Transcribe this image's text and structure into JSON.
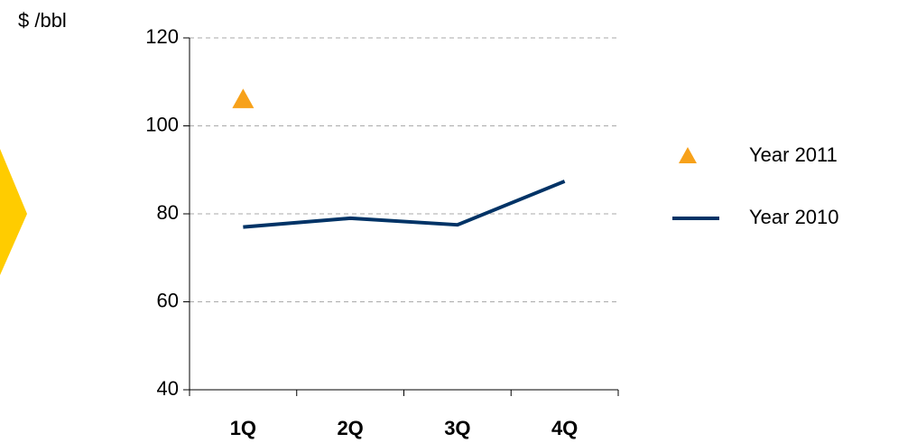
{
  "chart_data": {
    "type": "line",
    "y_axis_label": "$ /bbl",
    "categories": [
      "1Q",
      "2Q",
      "3Q",
      "4Q"
    ],
    "series": [
      {
        "name": "Year 2011",
        "color": "#f7a11a",
        "marker": "triangle",
        "values": [
          106,
          null,
          null,
          null
        ]
      },
      {
        "name": "Year 2010",
        "color": "#003366",
        "values": [
          77,
          79,
          77.5,
          87.4
        ]
      }
    ],
    "ylim": [
      40,
      120
    ],
    "yticks": [
      40,
      60,
      80,
      100,
      120
    ],
    "grid": true
  }
}
